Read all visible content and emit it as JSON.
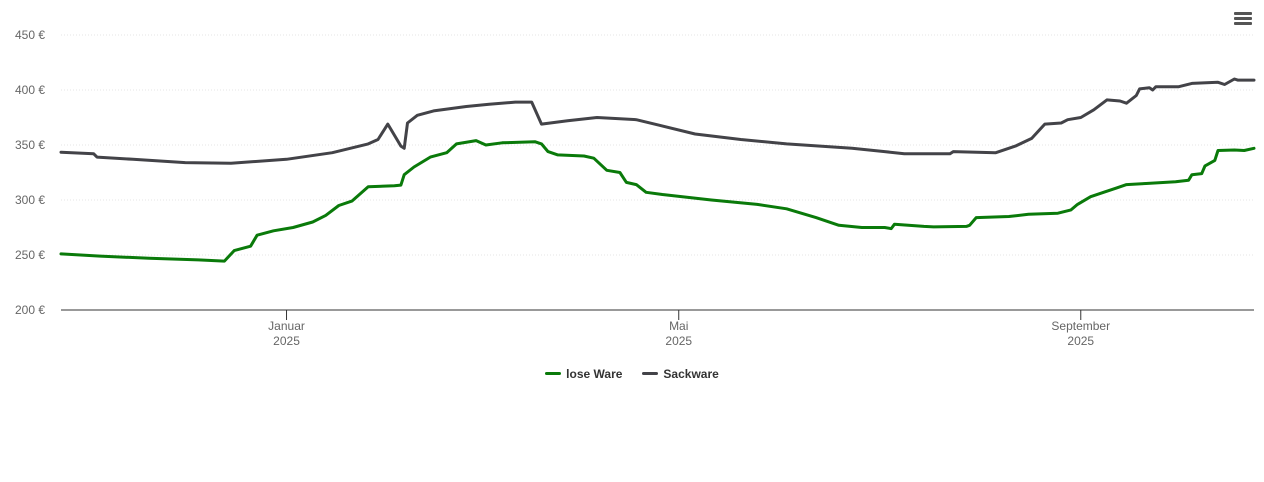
{
  "chart_data": {
    "type": "line",
    "title": "",
    "xlabel": "",
    "ylabel": "",
    "ylim": [
      200,
      450
    ],
    "yticks": [
      200,
      250,
      300,
      350,
      400,
      450
    ],
    "y_unit": "€",
    "xlim": [
      "2024-10-24",
      "2025-10-24"
    ],
    "xticks": [
      {
        "date": "2025-01-01",
        "month": "Januar",
        "year": "2025"
      },
      {
        "date": "2025-05-01",
        "month": "Mai",
        "year": "2025"
      },
      {
        "date": "2025-09-01",
        "month": "September",
        "year": "2025"
      }
    ],
    "grid": true,
    "legend_position": "bottom-center",
    "series": [
      {
        "name": "lose Ware",
        "color": "#0a7a0a",
        "points": [
          [
            "2024-10-24",
            251
          ],
          [
            "2024-11-05",
            249
          ],
          [
            "2024-11-20",
            247
          ],
          [
            "2024-12-05",
            245.5
          ],
          [
            "2024-12-13",
            244.5
          ],
          [
            "2024-12-16",
            254
          ],
          [
            "2024-12-21",
            258
          ],
          [
            "2024-12-23",
            268
          ],
          [
            "2024-12-28",
            272
          ],
          [
            "2025-01-03",
            275
          ],
          [
            "2025-01-09",
            280
          ],
          [
            "2025-01-13",
            286
          ],
          [
            "2025-01-17",
            295
          ],
          [
            "2025-01-21",
            299
          ],
          [
            "2025-01-26",
            312
          ],
          [
            "2025-02-03",
            313
          ],
          [
            "2025-02-05",
            313.5
          ],
          [
            "2025-02-06",
            323
          ],
          [
            "2025-02-09",
            330
          ],
          [
            "2025-02-14",
            339
          ],
          [
            "2025-02-19",
            343
          ],
          [
            "2025-02-22",
            351
          ],
          [
            "2025-02-28",
            354
          ],
          [
            "2025-03-03",
            350
          ],
          [
            "2025-03-08",
            352
          ],
          [
            "2025-03-18",
            353
          ],
          [
            "2025-03-20",
            351
          ],
          [
            "2025-03-22",
            344
          ],
          [
            "2025-03-25",
            341
          ],
          [
            "2025-04-02",
            340
          ],
          [
            "2025-04-05",
            338
          ],
          [
            "2025-04-09",
            327
          ],
          [
            "2025-04-13",
            325
          ],
          [
            "2025-04-15",
            316
          ],
          [
            "2025-04-18",
            314
          ],
          [
            "2025-04-21",
            307
          ],
          [
            "2025-04-26",
            305
          ],
          [
            "2025-05-11",
            300
          ],
          [
            "2025-05-25",
            296
          ],
          [
            "2025-06-03",
            292
          ],
          [
            "2025-06-12",
            284
          ],
          [
            "2025-06-19",
            277
          ],
          [
            "2025-06-26",
            275
          ],
          [
            "2025-07-03",
            275
          ],
          [
            "2025-07-05",
            274
          ],
          [
            "2025-07-06",
            278
          ],
          [
            "2025-07-15",
            276
          ],
          [
            "2025-07-18",
            275.5
          ],
          [
            "2025-07-28",
            276
          ],
          [
            "2025-07-29",
            277
          ],
          [
            "2025-07-31",
            284
          ],
          [
            "2025-08-10",
            285
          ],
          [
            "2025-08-16",
            287
          ],
          [
            "2025-08-25",
            288
          ],
          [
            "2025-08-29",
            291
          ],
          [
            "2025-08-31",
            296
          ],
          [
            "2025-09-04",
            303
          ],
          [
            "2025-09-08",
            307
          ],
          [
            "2025-09-12",
            311
          ],
          [
            "2025-09-15",
            314
          ],
          [
            "2025-09-21",
            315
          ],
          [
            "2025-09-30",
            316.5
          ],
          [
            "2025-10-04",
            318
          ],
          [
            "2025-10-05",
            323
          ],
          [
            "2025-10-08",
            324
          ],
          [
            "2025-10-09",
            331
          ],
          [
            "2025-10-12",
            336
          ],
          [
            "2025-10-13",
            345
          ],
          [
            "2025-10-18",
            345.5
          ],
          [
            "2025-10-21",
            345
          ],
          [
            "2025-10-24",
            347
          ]
        ]
      },
      {
        "name": "Sackware",
        "color": "#434348",
        "points": [
          [
            "2024-10-24",
            343.5
          ],
          [
            "2024-11-03",
            342
          ],
          [
            "2024-11-04",
            339
          ],
          [
            "2024-11-15",
            337
          ],
          [
            "2024-12-01",
            334
          ],
          [
            "2024-12-15",
            333.5
          ],
          [
            "2025-01-01",
            337
          ],
          [
            "2025-01-15",
            343
          ],
          [
            "2025-01-26",
            351
          ],
          [
            "2025-01-29",
            355
          ],
          [
            "2025-02-01",
            369
          ],
          [
            "2025-02-05",
            349
          ],
          [
            "2025-02-06",
            347
          ],
          [
            "2025-02-07",
            370
          ],
          [
            "2025-02-10",
            377
          ],
          [
            "2025-02-15",
            381
          ],
          [
            "2025-02-25",
            385
          ],
          [
            "2025-03-04",
            387
          ],
          [
            "2025-03-12",
            389
          ],
          [
            "2025-03-17",
            389
          ],
          [
            "2025-03-20",
            369
          ],
          [
            "2025-03-28",
            372
          ],
          [
            "2025-04-06",
            375
          ],
          [
            "2025-04-18",
            373
          ],
          [
            "2025-04-25",
            368
          ],
          [
            "2025-05-06",
            360
          ],
          [
            "2025-05-20",
            355
          ],
          [
            "2025-06-03",
            351
          ],
          [
            "2025-06-23",
            347
          ],
          [
            "2025-07-03",
            344
          ],
          [
            "2025-07-09",
            342
          ],
          [
            "2025-07-16",
            342
          ],
          [
            "2025-07-23",
            342
          ],
          [
            "2025-07-24",
            344
          ],
          [
            "2025-08-06",
            343
          ],
          [
            "2025-08-12",
            349
          ],
          [
            "2025-08-17",
            356
          ],
          [
            "2025-08-21",
            369
          ],
          [
            "2025-08-26",
            370
          ],
          [
            "2025-08-28",
            373
          ],
          [
            "2025-09-01",
            375
          ],
          [
            "2025-09-05",
            382
          ],
          [
            "2025-09-09",
            391
          ],
          [
            "2025-09-13",
            390
          ],
          [
            "2025-09-15",
            388
          ],
          [
            "2025-09-18",
            395
          ],
          [
            "2025-09-19",
            401
          ],
          [
            "2025-09-22",
            402
          ],
          [
            "2025-09-23",
            400
          ],
          [
            "2025-09-24",
            403
          ],
          [
            "2025-10-01",
            403
          ],
          [
            "2025-10-05",
            406
          ],
          [
            "2025-10-13",
            407
          ],
          [
            "2025-10-15",
            405
          ],
          [
            "2025-10-18",
            410
          ],
          [
            "2025-10-19",
            409
          ],
          [
            "2025-10-24",
            409
          ]
        ]
      }
    ]
  },
  "menu": {
    "icon": "hamburger-menu-icon"
  }
}
